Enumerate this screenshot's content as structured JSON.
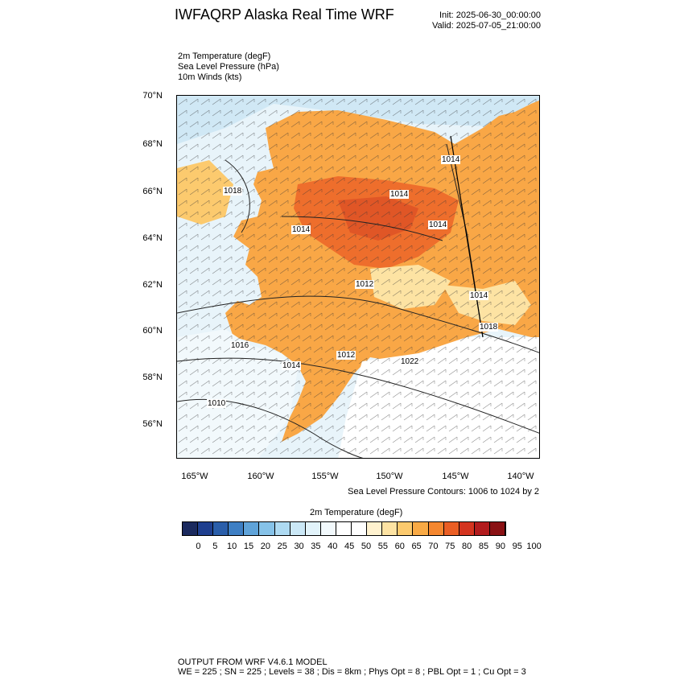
{
  "header": {
    "title": "IWFAQRP Alaska Real Time WRF",
    "init": "Init: 2025-06-30_00:00:00",
    "valid": "Valid: 2025-07-05_21:00:00"
  },
  "fields": [
    "2m Temperature   (degF)",
    "Sea Level Pressure   (hPa)",
    "10m Winds   (kts)"
  ],
  "map": {
    "lat_labels": [
      "70°N",
      "68°N",
      "66°N",
      "64°N",
      "62°N",
      "60°N",
      "58°N",
      "56°N"
    ],
    "lon_labels": [
      "165°W",
      "160°W",
      "155°W",
      "150°W",
      "145°W",
      "140°W"
    ],
    "pressure_labels": [
      "1018",
      "1014",
      "1014",
      "1014",
      "1014",
      "1012",
      "1014",
      "1018",
      "1016",
      "1014",
      "1012",
      "1022",
      "1010"
    ],
    "contour_note": "Sea Level Pressure Contours: 1006 to 1024 by 2"
  },
  "colorbar": {
    "title": "2m Temperature  (degF)",
    "ticks": [
      "0",
      "5",
      "10",
      "15",
      "20",
      "25",
      "30",
      "35",
      "40",
      "45",
      "50",
      "55",
      "60",
      "65",
      "70",
      "75",
      "80",
      "85",
      "90",
      "95",
      "100"
    ],
    "colors": [
      "#1b2a5e",
      "#1f3f8f",
      "#2a5eaa",
      "#3e7fc4",
      "#5fa3d9",
      "#86c2e8",
      "#aedaf2",
      "#cbe8f6",
      "#e2f3fa",
      "#f2f9fc",
      "#ffffff",
      "#ffffff",
      "#fff2cf",
      "#fde3a3",
      "#fcca6e",
      "#f9aa45",
      "#f5872f",
      "#ea5e24",
      "#d4341f",
      "#b21b1d",
      "#8a1114"
    ]
  },
  "footer": {
    "line1": "OUTPUT FROM WRF V4.6.1 MODEL",
    "line2": "WE = 225 ; SN = 225 ; Levels = 38 ; Dis = 8km ; Phys Opt = 8 ; PBL Opt = 1 ; Cu Opt = 3"
  }
}
